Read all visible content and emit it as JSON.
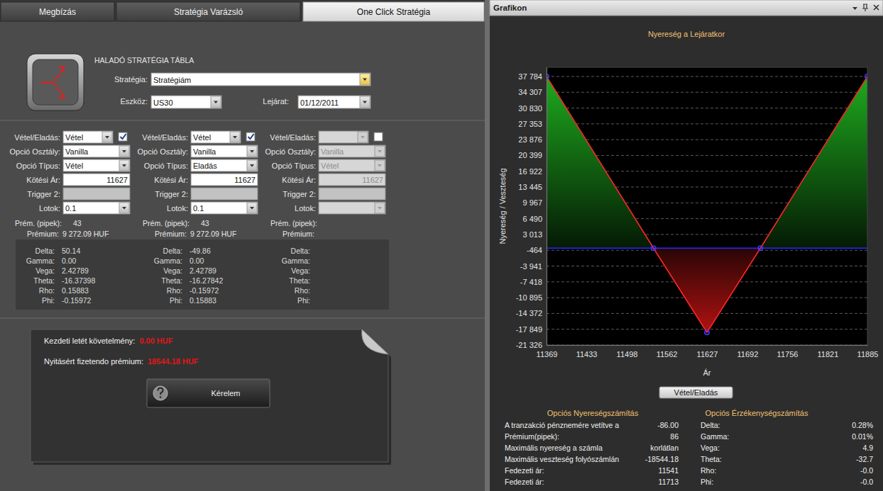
{
  "tabs": [
    "Megbízás",
    "Stratégia Varázsló",
    "One Click Stratégia"
  ],
  "strategy_table": {
    "title": "HALADÓ STRATÉGIA TÁBLA",
    "strategy_label": "Stratégia:",
    "strategy": "Stratégiám",
    "asset_label": "Eszköz:",
    "asset": "US30",
    "expiry_label": "Lejárat:",
    "expiry": "01/12/2011"
  },
  "legs": [
    {
      "checked": true,
      "fields": [
        {
          "label": "Vétel/Eladás:",
          "value": "Vétel"
        },
        {
          "label": "Opció Osztály:",
          "value": "Vanilla"
        },
        {
          "label": "Opció Típus:",
          "value": "Vétel"
        },
        {
          "label": "Kötési Ár:",
          "value": 11627
        },
        {
          "label": "Trigger 2:"
        },
        {
          "label": "Lotok:",
          "value": 0.1
        }
      ],
      "premium_pips_label": "Prém. (pipek):",
      "premium_pips": 43,
      "premium_label": "Prémium:",
      "premium": "9 272.09 HUF",
      "greeks": [
        {
          "label": "Delta:",
          "value": "50.14"
        },
        {
          "label": "Gamma:",
          "value": "0.00"
        },
        {
          "label": "Vega:",
          "value": "2.42789"
        },
        {
          "label": "Theta:",
          "value": "-16.37398"
        },
        {
          "label": "Rho:",
          "value": "0.15883"
        },
        {
          "label": "Phi:",
          "value": "-0.15972"
        }
      ]
    },
    {
      "checked": true,
      "fields": [
        {
          "label": "Vétel/Eladás:",
          "value": "Vétel"
        },
        {
          "label": "Opció Osztály:",
          "value": "Vanilla"
        },
        {
          "label": "Opció Típus:",
          "value": "Eladás"
        },
        {
          "label": "Kötési Ár:",
          "value": 11627
        },
        {
          "label": "Trigger 2:"
        },
        {
          "label": "Lotok:",
          "value": 0.1
        }
      ],
      "premium_pips_label": "Prém. (pipek):",
      "premium_pips": 43,
      "premium_label": "Prémium:",
      "premium": "9 272.09 HUF",
      "greeks": [
        {
          "label": "Delta:",
          "value": "-49.86"
        },
        {
          "label": "Gamma:",
          "value": "0.00"
        },
        {
          "label": "Vega:",
          "value": "2.42789"
        },
        {
          "label": "Theta:",
          "value": "-16.27842"
        },
        {
          "label": "Rho:",
          "value": "-0.15972"
        },
        {
          "label": "Phi:",
          "value": "0.15883"
        }
      ]
    },
    {
      "checked": false,
      "fields": [
        {
          "label": "Vétel/Eladás:"
        },
        {
          "label": "Opció Osztály:",
          "value": "Vanilla"
        },
        {
          "label": "Opció Típus:",
          "value": "Vétel"
        },
        {
          "label": "Kötési Ár:",
          "value": 11627
        },
        {
          "label": "Trigger 2:"
        },
        {
          "label": "Lotok:"
        }
      ],
      "premium_pips_label": "Prém. (pipek):",
      "premium_label": "Prémium:",
      "greeks": [
        {
          "label": "Delta:"
        },
        {
          "label": "Gamma:"
        },
        {
          "label": "Vega:"
        },
        {
          "label": "Theta:"
        },
        {
          "label": "Rho:"
        },
        {
          "label": "Phi:"
        }
      ]
    }
  ],
  "order_summary": {
    "initial_margin_label": "Kezdeti letét követelmény:",
    "initial_margin": "0.00 HUF",
    "opening_premium_label": "Nyitásért fizetendo prémium:",
    "opening_premium": "18544.18 HUF",
    "button": "Kérelem"
  },
  "chart_panel": {
    "title": "Grafikon",
    "button": "Vétel/Eladás"
  },
  "chart_data": {
    "type": "line",
    "title": "Nyereség a Lejáratkor",
    "x_label": "Ár",
    "y_label": "Nyereség / Veszteség",
    "xlim": [
      11369,
      11885
    ],
    "xticks": [
      11369,
      11433,
      11498,
      11562,
      11627,
      11692,
      11756,
      11821,
      11885
    ],
    "ylim": [
      -21326,
      39800
    ],
    "yticks": [
      {
        "value": 37784,
        "label": "37 784"
      },
      {
        "value": 34307,
        "label": "34 307"
      },
      {
        "value": 30830,
        "label": "30 830"
      },
      {
        "value": 27353,
        "label": "27 353"
      },
      {
        "value": 23876,
        "label": "23 876"
      },
      {
        "value": 20399,
        "label": "20 399"
      },
      {
        "value": 16922,
        "label": "16 922"
      },
      {
        "value": 13445,
        "label": "13 445"
      },
      {
        "value": 9967,
        "label": "9 967"
      },
      {
        "value": 6490,
        "label": "6 490"
      },
      {
        "value": 3013,
        "label": "3 013"
      },
      -464,
      {
        "value": -3941,
        "label": "-3 941"
      },
      {
        "value": -7418,
        "label": "-7 418"
      },
      {
        "value": -10895,
        "label": "-10 895"
      },
      {
        "value": -14372,
        "label": "-14 372"
      },
      {
        "value": -17849,
        "label": "-17 849"
      },
      {
        "value": -21326,
        "label": "-21 326"
      }
    ],
    "grid": true,
    "series": [
      {
        "x": [
          11369,
          11541,
          11627,
          11713,
          11885
        ],
        "values": [
          37784,
          0,
          -18544.18,
          0,
          37784
        ],
        "color": "#ff2626",
        "marker": "circle"
      },
      {
        "x": [
          11369,
          11885
        ],
        "values": [
          0,
          0
        ],
        "color": "#2a2aff",
        "marker": "none"
      }
    ]
  },
  "profit_calculation": {
    "title": "Opciós Nyereségszámítás",
    "rows": [
      {
        "label": "A tranzakció pénznemére vetítve a",
        "value": "-86.00"
      },
      {
        "label": "Prémium(pipek):",
        "value": "86"
      },
      {
        "label": "Maximális nyereség a számla",
        "value": "korlátlan"
      },
      {
        "label": "Maximális veszteség folyószámlán",
        "value": "-18544.18"
      },
      {
        "label": "Fedezeti ár:",
        "value": "11541"
      },
      {
        "label": "Fedezeti ár:",
        "value": "11713"
      }
    ]
  },
  "sensitivity": {
    "title": "Opciós Érzékenységszámítás",
    "rows": [
      {
        "label": "Delta:",
        "value": "0.28%"
      },
      {
        "label": "Gamma:",
        "value": "0.01%"
      },
      {
        "label": "Vega:",
        "value": "4.9"
      },
      {
        "label": "Theta:",
        "value": "-32.7"
      },
      {
        "label": "Rho:",
        "value": "-0.0"
      },
      {
        "label": "Phi:",
        "value": "-0.0"
      }
    ]
  }
}
